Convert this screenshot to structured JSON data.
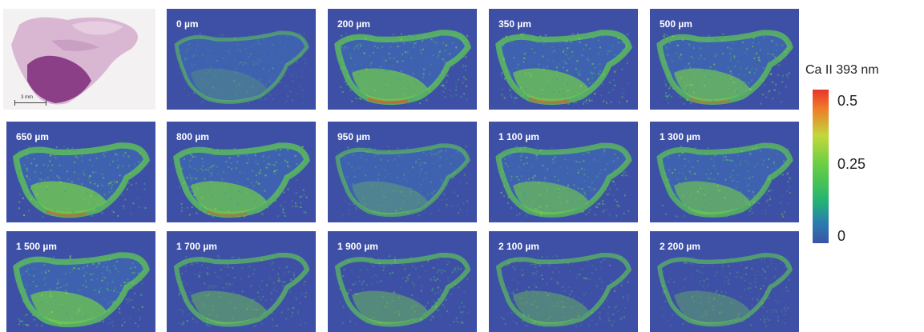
{
  "histology": {
    "scale_label": "3 mm"
  },
  "panels": [
    {
      "label": "0 µm",
      "intensity": 0.35,
      "hot": 0.0
    },
    {
      "label": "200 µm",
      "intensity": 0.85,
      "hot": 0.6
    },
    {
      "label": "350 µm",
      "intensity": 0.85,
      "hot": 0.5
    },
    {
      "label": "500 µm",
      "intensity": 0.8,
      "hot": 0.35
    },
    {
      "label": "650 µm",
      "intensity": 0.9,
      "hot": 0.5
    },
    {
      "label": "800 µm",
      "intensity": 0.85,
      "hot": 0.4
    },
    {
      "label": "950 µm",
      "intensity": 0.45,
      "hot": 0.0
    },
    {
      "label": "1 100 µm",
      "intensity": 0.75,
      "hot": 0.0
    },
    {
      "label": "1 300 µm",
      "intensity": 0.75,
      "hot": 0.0
    },
    {
      "label": "1 500 µm",
      "intensity": 0.85,
      "hot": 0.0
    },
    {
      "label": "1 700 µm",
      "intensity": 0.6,
      "hot": 0.0
    },
    {
      "label": "1 900 µm",
      "intensity": 0.6,
      "hot": 0.0
    },
    {
      "label": "2 100 µm",
      "intensity": 0.55,
      "hot": 0.0
    },
    {
      "label": "2 200 µm",
      "intensity": 0.5,
      "hot": 0.0
    }
  ],
  "colorbar": {
    "title": "Ca II 393 nm",
    "ticks": [
      "0.5",
      "0.25",
      "0"
    ],
    "colors": {
      "high": "#e8352b",
      "mid": "#6ccf45",
      "low": "#3a53a6"
    }
  }
}
